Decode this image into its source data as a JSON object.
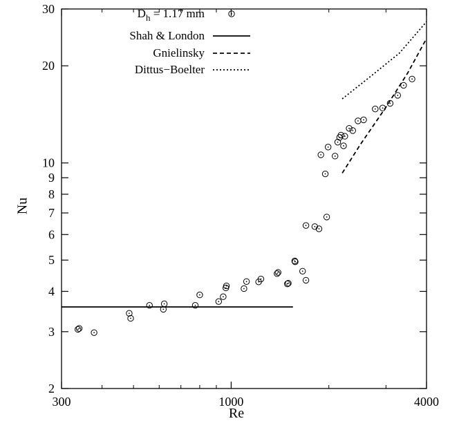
{
  "chart_data": {
    "type": "scatter",
    "xlabel": "Re",
    "ylabel": "Nu",
    "xscale": "log",
    "yscale": "log",
    "xlim": [
      300,
      4000
    ],
    "ylim": [
      2,
      30
    ],
    "grid": false,
    "legend_position": "top-left",
    "x_tick_labels": [
      {
        "value": 300,
        "label": "300"
      },
      {
        "value": 1000,
        "label": "1000"
      },
      {
        "value": 4000,
        "label": "4000"
      }
    ],
    "x_minor_ticks": [
      400,
      500,
      600,
      700,
      800,
      900,
      2000,
      3000
    ],
    "y_tick_labels": [
      {
        "value": 2,
        "label": "2"
      },
      {
        "value": 3,
        "label": "3"
      },
      {
        "value": 4,
        "label": "4"
      },
      {
        "value": 5,
        "label": "5"
      },
      {
        "value": 6,
        "label": "6"
      },
      {
        "value": 7,
        "label": "7"
      },
      {
        "value": 8,
        "label": "8"
      },
      {
        "value": 9,
        "label": "9"
      },
      {
        "value": 10,
        "label": "10"
      },
      {
        "value": 20,
        "label": "20"
      },
      {
        "value": 30,
        "label": "30"
      }
    ],
    "legend": [
      {
        "label_main": "D",
        "label_sub": "h",
        "label_rest": " = 1.17 mm",
        "style": "circle-dot"
      },
      {
        "label": "Shah & London",
        "style": "solid"
      },
      {
        "label": "Gnielinsky",
        "style": "dashed"
      },
      {
        "label": "Dittus−Boelter",
        "style": "dotted"
      }
    ],
    "series": [
      {
        "name": "D_h = 1.17 mm",
        "kind": "markers",
        "points": [
          [
            337,
            3.05
          ],
          [
            340,
            3.07
          ],
          [
            378,
            2.98
          ],
          [
            485,
            3.42
          ],
          [
            490,
            3.3
          ],
          [
            560,
            3.62
          ],
          [
            618,
            3.52
          ],
          [
            622,
            3.66
          ],
          [
            775,
            3.62
          ],
          [
            800,
            3.9
          ],
          [
            915,
            3.72
          ],
          [
            945,
            3.85
          ],
          [
            963,
            4.1
          ],
          [
            967,
            4.16
          ],
          [
            1095,
            4.08
          ],
          [
            1115,
            4.29
          ],
          [
            1215,
            4.28
          ],
          [
            1235,
            4.37
          ],
          [
            1385,
            4.54
          ],
          [
            1395,
            4.58
          ],
          [
            1490,
            4.22
          ],
          [
            1500,
            4.24
          ],
          [
            1570,
            4.97
          ],
          [
            1575,
            4.94
          ],
          [
            1660,
            4.62
          ],
          [
            1700,
            4.33
          ],
          [
            1700,
            6.4
          ],
          [
            1810,
            6.35
          ],
          [
            1865,
            6.25
          ],
          [
            1970,
            6.8
          ],
          [
            1890,
            10.6
          ],
          [
            1950,
            9.25
          ],
          [
            1990,
            11.2
          ],
          [
            2090,
            10.5
          ],
          [
            2130,
            11.6
          ],
          [
            2160,
            12.0
          ],
          [
            2180,
            12.2
          ],
          [
            2220,
            11.3
          ],
          [
            2240,
            12.1
          ],
          [
            2310,
            12.8
          ],
          [
            2370,
            12.6
          ],
          [
            2460,
            13.5
          ],
          [
            2560,
            13.6
          ],
          [
            2780,
            14.7
          ],
          [
            2930,
            14.8
          ],
          [
            3090,
            15.3
          ],
          [
            3260,
            16.2
          ],
          [
            3400,
            17.4
          ],
          [
            3610,
            18.2
          ]
        ]
      },
      {
        "name": "Shah & London",
        "kind": "line",
        "style": "solid",
        "points": [
          [
            300,
            3.58
          ],
          [
            1550,
            3.58
          ]
        ]
      },
      {
        "name": "Gnielinsky",
        "kind": "line",
        "style": "dashed",
        "points": [
          [
            2200,
            9.3
          ],
          [
            2500,
            11.4
          ],
          [
            3000,
            14.9
          ],
          [
            3500,
            19.0
          ],
          [
            4000,
            24.3
          ]
        ]
      },
      {
        "name": "Dittus−Boelter",
        "kind": "line",
        "style": "dotted",
        "points": [
          [
            2200,
            15.8
          ],
          [
            2700,
            18.6
          ],
          [
            3300,
            21.9
          ],
          [
            4000,
            27.4
          ]
        ]
      }
    ]
  }
}
